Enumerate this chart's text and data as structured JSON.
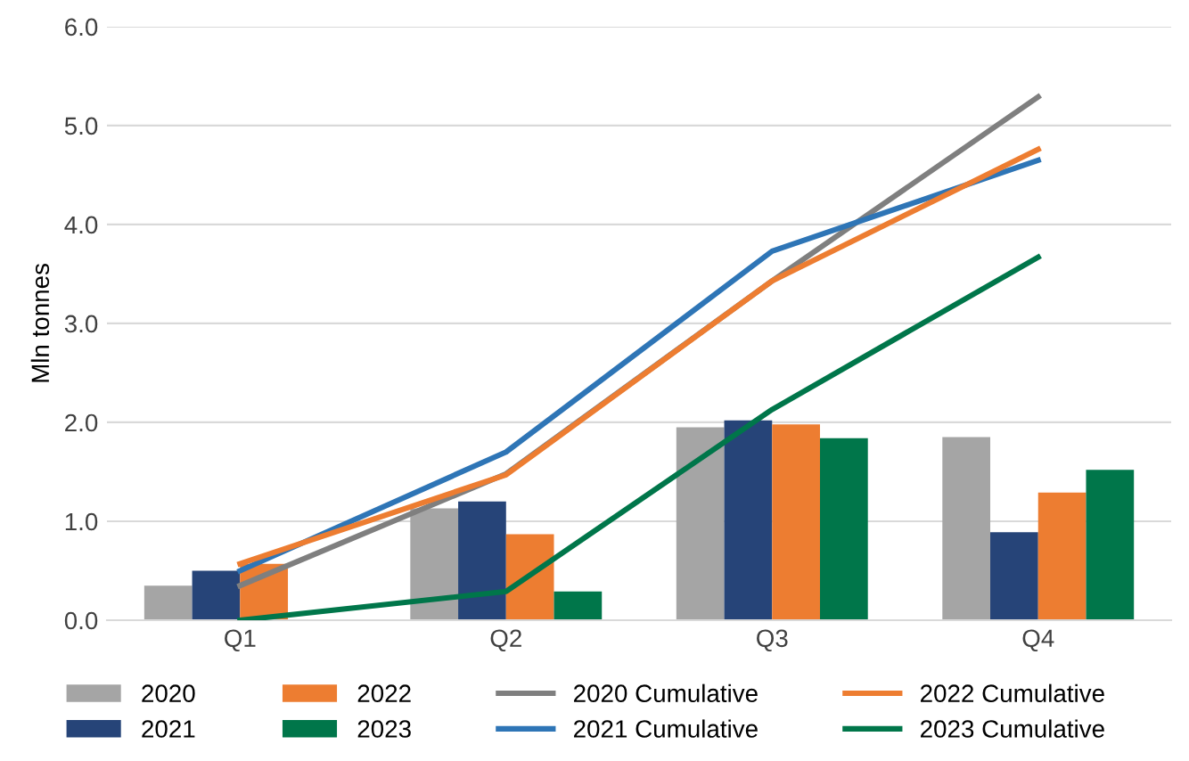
{
  "chart_data": {
    "type": "bar",
    "ylabel": "Mln tonnes",
    "categories": [
      "Q1",
      "Q2",
      "Q3",
      "Q4"
    ],
    "series": [
      {
        "name": "2020",
        "color": "#a5a5a5",
        "values": [
          0.35,
          1.13,
          1.95,
          1.85
        ]
      },
      {
        "name": "2021",
        "color": "#264478",
        "values": [
          0.5,
          1.2,
          2.02,
          0.89
        ]
      },
      {
        "name": "2022",
        "color": "#ed7d31",
        "values": [
          0.57,
          0.87,
          1.98,
          1.29
        ]
      },
      {
        "name": "2023",
        "color": "#00764a",
        "values": [
          0.0,
          0.29,
          1.84,
          1.52
        ]
      },
      {
        "name": "2020 Cumulative",
        "type": "line",
        "color": "#7f7f7f",
        "values": [
          0.35,
          1.48,
          3.43,
          5.29
        ]
      },
      {
        "name": "2021 Cumulative",
        "type": "line",
        "color": "#2e75b6",
        "values": [
          0.5,
          1.7,
          3.73,
          4.65
        ]
      },
      {
        "name": "2022 Cumulative",
        "type": "line",
        "color": "#ed7d31",
        "values": [
          0.57,
          1.47,
          3.43,
          4.76
        ]
      },
      {
        "name": "2023 Cumulative",
        "type": "line",
        "color": "#00764a",
        "values": [
          0.0,
          0.29,
          2.13,
          3.67
        ]
      }
    ],
    "ylim": [
      0,
      6
    ],
    "yticks": [
      {
        "value": 0,
        "label": "0.0"
      },
      {
        "value": 1,
        "label": "1.0"
      },
      {
        "value": 2,
        "label": "2.0"
      },
      {
        "value": 3,
        "label": "3.0"
      },
      {
        "value": 4,
        "label": "4.0"
      },
      {
        "value": 5,
        "label": "5.0"
      },
      {
        "value": 6,
        "label": "6.0"
      }
    ],
    "grid": "y",
    "legend": "bottom"
  }
}
